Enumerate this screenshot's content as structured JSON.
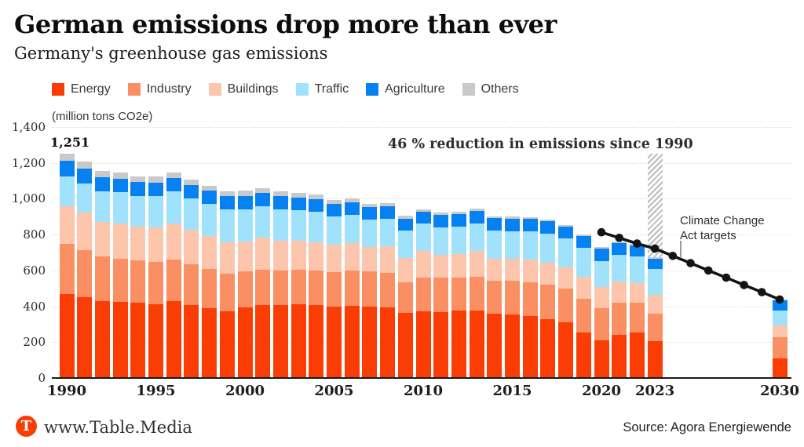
{
  "header": {
    "title": "German emissions drop more than ever",
    "subtitle": "Germany's greenhouse gas emissions"
  },
  "legend": {
    "items": [
      {
        "label": "Energy",
        "color": "#f93d04"
      },
      {
        "label": "Industry",
        "color": "#fa8f63"
      },
      {
        "label": "Buildings",
        "color": "#fdc5ab"
      },
      {
        "label": "Traffic",
        "color": "#a0e2fc"
      },
      {
        "label": "Agriculture",
        "color": "#0581f2"
      },
      {
        "label": "Others",
        "color": "#c9c9c9"
      }
    ]
  },
  "chart": {
    "unit_label": "(million tons CO2e)",
    "peak_label": "1,251",
    "annotation": "46 % reduction in emissions since 1990",
    "target_label_line1": "Climate Change",
    "target_label_line2": "Act targets"
  },
  "chart_data": {
    "type": "bar",
    "stacked": true,
    "title": "German emissions drop more than ever",
    "subtitle": "Germany's greenhouse gas emissions",
    "ylabel": "(million tons CO2e)",
    "ylim": [
      0,
      1400
    ],
    "grid": true,
    "y_ticks": [
      0,
      200,
      400,
      600,
      800,
      1000,
      1200,
      1400
    ],
    "y_tick_labels": [
      "0",
      "200",
      "400",
      "600",
      "800",
      "1,000",
      "1,200",
      "1,400"
    ],
    "x_tick_years": [
      1990,
      1995,
      2000,
      2005,
      2010,
      2015,
      2020,
      2023,
      2030
    ],
    "years": [
      1990,
      1991,
      1992,
      1993,
      1994,
      1995,
      1996,
      1997,
      1998,
      1999,
      2000,
      2001,
      2002,
      2003,
      2004,
      2005,
      2006,
      2007,
      2008,
      2009,
      2010,
      2011,
      2012,
      2013,
      2014,
      2015,
      2016,
      2017,
      2018,
      2019,
      2020,
      2021,
      2022,
      2023,
      2030
    ],
    "series": [
      {
        "name": "Energy",
        "color": "#f93d04",
        "values": [
          466,
          450,
          428,
          424,
          418,
          413,
          429,
          406,
          388,
          372,
          394,
          409,
          408,
          411,
          405,
          397,
          403,
          398,
          392,
          364,
          372,
          369,
          375,
          378,
          357,
          355,
          345,
          328,
          310,
          254,
          210,
          240,
          254,
          205,
          108
        ]
      },
      {
        "name": "Industry",
        "color": "#fa8f63",
        "values": [
          284,
          263,
          248,
          240,
          238,
          236,
          230,
          228,
          222,
          212,
          199,
          196,
          192,
          193,
          196,
          194,
          196,
          197,
          196,
          169,
          188,
          189,
          185,
          187,
          185,
          188,
          190,
          193,
          190,
          187,
          178,
          181,
          164,
          155,
          118
        ]
      },
      {
        "name": "Buildings",
        "color": "#fdc5ab",
        "values": [
          210,
          209,
          196,
          199,
          190,
          190,
          205,
          192,
          182,
          172,
          168,
          176,
          166,
          163,
          158,
          152,
          155,
          135,
          147,
          138,
          148,
          130,
          133,
          142,
          122,
          120,
          124,
          122,
          117,
          123,
          120,
          119,
          112,
          102,
          67
        ]
      },
      {
        "name": "Traffic",
        "color": "#a0e2fc",
        "values": [
          163,
          165,
          170,
          173,
          170,
          176,
          177,
          176,
          179,
          186,
          181,
          178,
          176,
          171,
          170,
          160,
          158,
          155,
          154,
          152,
          153,
          153,
          152,
          155,
          157,
          156,
          159,
          163,
          162,
          163,
          146,
          148,
          148,
          145,
          85
        ]
      },
      {
        "name": "Agriculture",
        "color": "#0581f2",
        "values": [
          90,
          83,
          78,
          76,
          76,
          75,
          74,
          74,
          73,
          72,
          75,
          74,
          72,
          70,
          69,
          69,
          68,
          68,
          68,
          67,
          68,
          68,
          69,
          70,
          70,
          70,
          70,
          69,
          64,
          64,
          66,
          64,
          62,
          60,
          56
        ]
      },
      {
        "name": "Others",
        "color": "#c9c9c9",
        "values": [
          38,
          37,
          36,
          35,
          34,
          33,
          32,
          31,
          30,
          29,
          28,
          27,
          26,
          25,
          24,
          21,
          20,
          19,
          18,
          17,
          13,
          13,
          12,
          12,
          11,
          11,
          11,
          10,
          10,
          9,
          9,
          8,
          6,
          6,
          4
        ]
      }
    ],
    "bar_label": {
      "year": 1990,
      "text": "1,251",
      "value": 1251
    },
    "annotation_text": "46 % reduction in emissions since 1990",
    "hatch": {
      "year": 2023,
      "value_range": [
        673,
        1251
      ]
    },
    "target_line": {
      "name": "Climate Change Act targets",
      "years": [
        2020,
        2021,
        2022,
        2023,
        2024,
        2025,
        2026,
        2027,
        2028,
        2029,
        2030
      ],
      "values": [
        813,
        782,
        750,
        722,
        681,
        641,
        600,
        560,
        519,
        479,
        438
      ],
      "color": "#141414"
    },
    "legend_position": "top"
  },
  "footer": {
    "logo_letter": "T",
    "logo_color": "#f93d04",
    "site": "www.Table.Media",
    "source": "Source: Agora Energiewende"
  }
}
